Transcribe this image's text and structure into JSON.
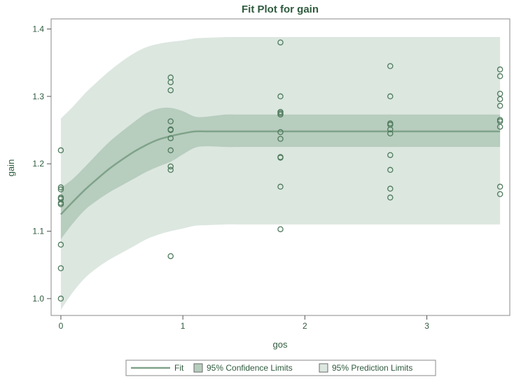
{
  "chart_data": {
    "type": "scatter",
    "title": "Fit Plot for gain",
    "xlabel": "gos",
    "ylabel": "gain",
    "xlim": [
      -0.08,
      3.68
    ],
    "ylim": [
      0.975,
      1.415
    ],
    "xticks": [
      0,
      1,
      2,
      3
    ],
    "xtick_labels": [
      "0",
      "1",
      "2",
      "3"
    ],
    "yticks": [
      1.0,
      1.1,
      1.2,
      1.3,
      1.4
    ],
    "ytick_labels": [
      "1.0",
      "1.1",
      "1.2",
      "1.3",
      "1.4"
    ],
    "grid": false,
    "legend_position": "bottom",
    "colors": {
      "prediction_band": "#dce7e0",
      "confidence_band": "#b7cdbe",
      "fit_line": "#7fa38a",
      "points": "#4f7a5c",
      "text": "#2f5b3e",
      "axis": "#555555"
    },
    "legend": [
      {
        "label": "Fit",
        "kind": "line"
      },
      {
        "label": "95% Confidence Limits",
        "kind": "confidence"
      },
      {
        "label": "95% Prediction Limits",
        "kind": "prediction"
      }
    ],
    "fit": {
      "x": [
        0,
        0.1,
        0.2,
        0.3,
        0.4,
        0.5,
        0.6,
        0.7,
        0.8,
        0.9,
        1.0,
        1.1,
        1.2,
        1.35,
        1.5,
        2.0,
        2.5,
        3.0,
        3.6
      ],
      "y": [
        1.125,
        1.144,
        1.162,
        1.178,
        1.193,
        1.206,
        1.218,
        1.228,
        1.236,
        1.241,
        1.245,
        1.248,
        1.248,
        1.248,
        1.248,
        1.248,
        1.248,
        1.248,
        1.248
      ],
      "cl_lo": [
        1.088,
        1.112,
        1.132,
        1.146,
        1.158,
        1.168,
        1.178,
        1.188,
        1.196,
        1.203,
        1.214,
        1.224,
        1.226,
        1.225,
        1.225,
        1.225,
        1.225,
        1.225,
        1.225
      ],
      "cl_hi": [
        1.164,
        1.178,
        1.196,
        1.215,
        1.233,
        1.248,
        1.262,
        1.275,
        1.282,
        1.283,
        1.278,
        1.27,
        1.27,
        1.273,
        1.273,
        1.273,
        1.273,
        1.273,
        1.273
      ],
      "pl_lo": [
        0.983,
        1.01,
        1.031,
        1.046,
        1.058,
        1.068,
        1.078,
        1.088,
        1.095,
        1.1,
        1.104,
        1.108,
        1.109,
        1.11,
        1.11,
        1.11,
        1.11,
        1.11,
        1.11
      ],
      "pl_hi": [
        1.267,
        1.285,
        1.305,
        1.322,
        1.338,
        1.352,
        1.364,
        1.373,
        1.378,
        1.381,
        1.383,
        1.386,
        1.387,
        1.388,
        1.388,
        1.388,
        1.388,
        1.388,
        1.388
      ]
    },
    "points": {
      "x": [
        0,
        0,
        0,
        0,
        0,
        0,
        0,
        0,
        0,
        0,
        0.9,
        0.9,
        0.9,
        0.9,
        0.9,
        0.9,
        0.9,
        0.9,
        0.9,
        0.9,
        0.9,
        1.8,
        1.8,
        1.8,
        1.8,
        1.8,
        1.8,
        1.8,
        1.8,
        1.8,
        1.8,
        1.8,
        2.7,
        2.7,
        2.7,
        2.7,
        2.7,
        2.7,
        2.7,
        2.7,
        2.7,
        2.7,
        3.6,
        3.6,
        3.6,
        3.6,
        3.6,
        3.6,
        3.6,
        3.6,
        3.6,
        3.6
      ],
      "y": [
        1.22,
        1.165,
        1.162,
        1.15,
        1.148,
        1.142,
        1.14,
        1.08,
        1.045,
        1.0,
        1.328,
        1.321,
        1.309,
        1.263,
        1.251,
        1.238,
        1.22,
        1.196,
        1.191,
        1.063,
        1.25,
        1.38,
        1.3,
        1.277,
        1.273,
        1.247,
        1.237,
        1.21,
        1.209,
        1.166,
        1.103,
        1.275,
        1.345,
        1.3,
        1.26,
        1.258,
        1.251,
        1.245,
        1.213,
        1.191,
        1.163,
        1.15,
        1.34,
        1.33,
        1.304,
        1.296,
        1.286,
        1.265,
        1.263,
        1.255,
        1.166,
        1.155
      ]
    }
  }
}
